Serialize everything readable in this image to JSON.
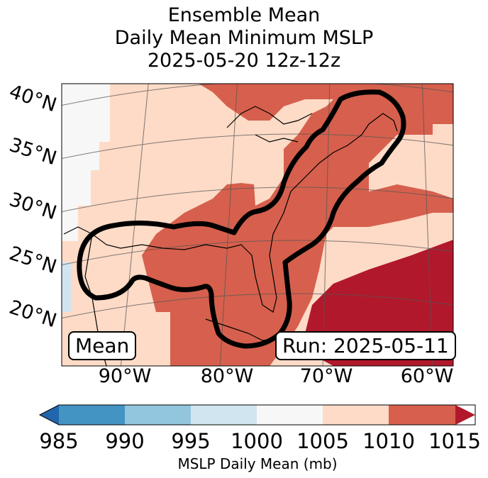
{
  "title": {
    "line1": "Ensemble Mean",
    "line2": "Daily Mean Minimum MSLP",
    "line3": "2025-05-20 12z-12z"
  },
  "map": {
    "lat_labels": [
      "40°N",
      "35°N",
      "30°N",
      "25°N",
      "20°N"
    ],
    "lon_labels": [
      "90°W",
      "80°W",
      "70°W",
      "60°W"
    ],
    "mean_box": "Mean",
    "run_box": "Run: 2025-05-11"
  },
  "colorbar": {
    "ticks": [
      "985",
      "990",
      "995",
      "1000",
      "1005",
      "1010",
      "1015"
    ],
    "label": "MSLP Daily Mean (mb)",
    "colors": [
      "#2166ac",
      "#4393c3",
      "#92c5de",
      "#d1e5f0",
      "#f7f7f7",
      "#fddbc7",
      "#d6604d",
      "#b2182b"
    ]
  }
}
